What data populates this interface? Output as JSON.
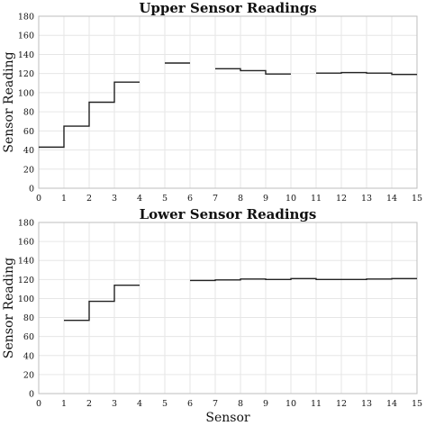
{
  "chart_data": [
    {
      "type": "line",
      "style": "step",
      "title": "Upper Sensor Readings",
      "xlabel": "",
      "ylabel": "Sensor Reading",
      "xlim": [
        0,
        15
      ],
      "ylim": [
        0,
        180
      ],
      "xticks": [
        0,
        1,
        2,
        3,
        4,
        5,
        6,
        7,
        8,
        9,
        10,
        11,
        12,
        13,
        14,
        15
      ],
      "yticks": [
        0,
        20,
        40,
        60,
        80,
        100,
        120,
        140,
        160,
        180
      ],
      "grid": true,
      "segments": [
        [
          [
            0,
            43
          ],
          [
            1,
            43
          ],
          [
            1,
            65
          ],
          [
            2,
            65
          ],
          [
            2,
            90
          ],
          [
            3,
            90
          ],
          [
            3,
            111
          ],
          [
            4,
            111
          ]
        ],
        [
          [
            5,
            131
          ],
          [
            6,
            131
          ]
        ],
        [
          [
            7,
            125
          ],
          [
            8,
            125
          ],
          [
            8,
            123
          ],
          [
            9,
            123
          ],
          [
            9,
            119.5
          ],
          [
            10,
            119.5
          ]
        ],
        [
          [
            11,
            120.5
          ],
          [
            12,
            120.5
          ],
          [
            12,
            121
          ],
          [
            13,
            121
          ],
          [
            13,
            120.5
          ],
          [
            14,
            120.5
          ],
          [
            14,
            119
          ],
          [
            15,
            119
          ]
        ]
      ]
    },
    {
      "type": "line",
      "style": "step",
      "title": "Lower Sensor Readings",
      "xlabel": "Sensor",
      "ylabel": "Sensor Reading",
      "xlim": [
        0,
        15
      ],
      "ylim": [
        0,
        180
      ],
      "xticks": [
        0,
        1,
        2,
        3,
        4,
        5,
        6,
        7,
        8,
        9,
        10,
        11,
        12,
        13,
        14,
        15
      ],
      "yticks": [
        0,
        20,
        40,
        60,
        80,
        100,
        120,
        140,
        160,
        180
      ],
      "grid": true,
      "segments": [
        [
          [
            1,
            77
          ],
          [
            2,
            77
          ],
          [
            2,
            97
          ],
          [
            3,
            97
          ],
          [
            3,
            114
          ],
          [
            4,
            114
          ]
        ],
        [
          [
            6,
            119
          ],
          [
            7,
            119
          ],
          [
            7,
            119.5
          ],
          [
            8,
            119.5
          ],
          [
            8,
            120.5
          ],
          [
            9,
            120.5
          ],
          [
            9,
            120
          ],
          [
            10,
            120
          ],
          [
            10,
            121
          ],
          [
            11,
            121
          ],
          [
            11,
            120
          ],
          [
            12,
            120
          ],
          [
            12,
            120
          ],
          [
            13,
            120
          ],
          [
            13,
            120.5
          ],
          [
            14,
            120.5
          ],
          [
            14,
            121
          ],
          [
            15,
            121
          ]
        ]
      ]
    }
  ]
}
